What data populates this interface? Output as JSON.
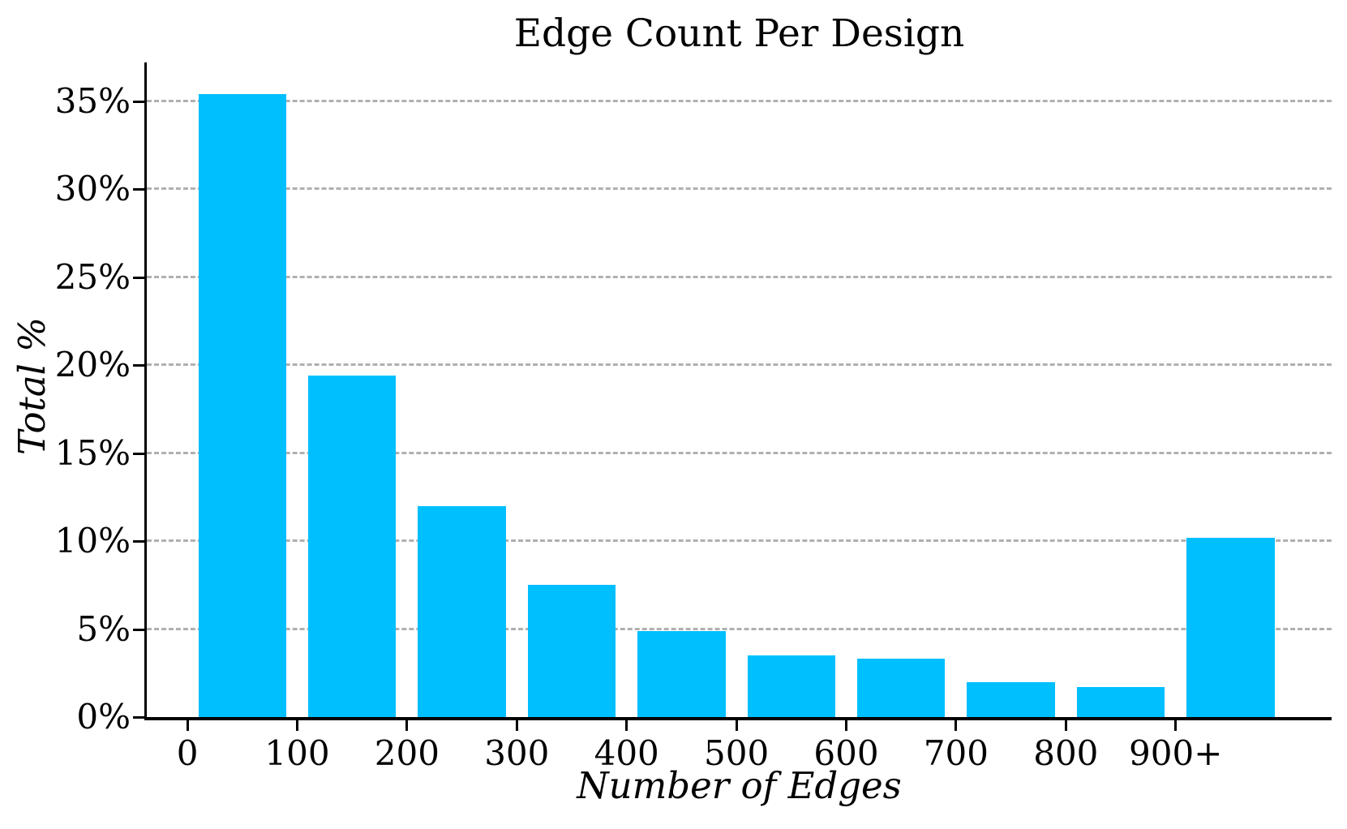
{
  "chart_data": {
    "type": "bar",
    "title": "Edge Count Per Design",
    "xlabel": "Number of Edges",
    "ylabel": "Total %",
    "unit": "percent",
    "categories": [
      "0-100",
      "100-200",
      "200-300",
      "300-400",
      "400-500",
      "500-600",
      "600-700",
      "700-800",
      "800-900",
      "900+"
    ],
    "values": [
      35.4,
      19.4,
      12.0,
      7.5,
      4.9,
      3.5,
      3.3,
      2.0,
      1.7,
      10.2
    ],
    "bar_centers_u": [
      50,
      150,
      250,
      350,
      450,
      550,
      650,
      750,
      850,
      950
    ],
    "bar_width_u": 80,
    "x_ticks": [
      {
        "u": 0,
        "label": "0"
      },
      {
        "u": 100,
        "label": "100"
      },
      {
        "u": 200,
        "label": "200"
      },
      {
        "u": 300,
        "label": "300"
      },
      {
        "u": 400,
        "label": "400"
      },
      {
        "u": 500,
        "label": "500"
      },
      {
        "u": 600,
        "label": "600"
      },
      {
        "u": 700,
        "label": "700"
      },
      {
        "u": 800,
        "label": "800"
      },
      {
        "u": 900,
        "label": "900+"
      }
    ],
    "y_ticks": [
      {
        "v": 0,
        "label": "0%"
      },
      {
        "v": 5,
        "label": "5%"
      },
      {
        "v": 10,
        "label": "10%"
      },
      {
        "v": 15,
        "label": "15%"
      },
      {
        "v": 20,
        "label": "20%"
      },
      {
        "v": 25,
        "label": "25%"
      },
      {
        "v": 30,
        "label": "30%"
      },
      {
        "v": 35,
        "label": "35%"
      }
    ],
    "xlim": [
      -37,
      1042
    ],
    "ylim": [
      0,
      37.2
    ],
    "grid": {
      "horizontal": true,
      "vertical": false,
      "style": "dashed",
      "color": "#b0b0b0"
    },
    "legend": "none",
    "bar_color": "#00BFFF",
    "axis_color": "#000000",
    "background_color": "#ffffff"
  }
}
